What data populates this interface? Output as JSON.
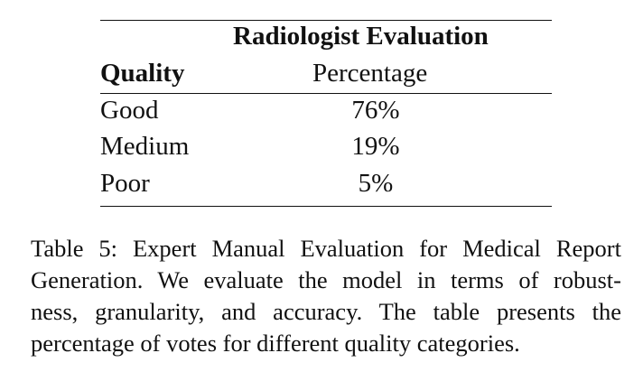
{
  "table": {
    "group_header": "Radiologist Evaluation",
    "columns": [
      "Quality",
      "Percentage"
    ],
    "rows": [
      {
        "quality": "Good",
        "percentage": "76%"
      },
      {
        "quality": "Medium",
        "percentage": "19%"
      },
      {
        "quality": "Poor",
        "percentage": "5%"
      }
    ]
  },
  "caption": {
    "lines": [
      "Table 5: Expert Manual Evaluation for Medical Report",
      "Generation. We evaluate the model in terms of robust-",
      "ness, granularity, and accuracy. The table presents the",
      "percentage of votes for different quality categories."
    ]
  }
}
